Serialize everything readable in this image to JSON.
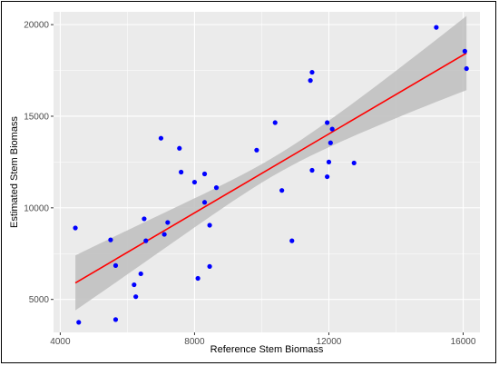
{
  "chart_data": {
    "type": "scatter",
    "xlabel": "Reference Stem Biomass",
    "ylabel": "Estimated Stem Biomass",
    "xlim": [
      3800,
      16500
    ],
    "ylim": [
      3200,
      20700
    ],
    "x_ticks": [
      4000,
      8000,
      12000,
      16000
    ],
    "y_ticks": [
      5000,
      10000,
      15000,
      20000
    ],
    "grid": true,
    "legend": "none",
    "points": [
      {
        "x": 4450,
        "y": 8900
      },
      {
        "x": 4550,
        "y": 3750
      },
      {
        "x": 5500,
        "y": 8250
      },
      {
        "x": 5650,
        "y": 6850
      },
      {
        "x": 5650,
        "y": 3900
      },
      {
        "x": 6200,
        "y": 5800
      },
      {
        "x": 6250,
        "y": 5150
      },
      {
        "x": 6400,
        "y": 6400
      },
      {
        "x": 6500,
        "y": 9400
      },
      {
        "x": 6550,
        "y": 8200
      },
      {
        "x": 7000,
        "y": 13800
      },
      {
        "x": 7100,
        "y": 8550
      },
      {
        "x": 7200,
        "y": 9200
      },
      {
        "x": 7550,
        "y": 13250
      },
      {
        "x": 7600,
        "y": 11950
      },
      {
        "x": 8000,
        "y": 11400
      },
      {
        "x": 8100,
        "y": 6150
      },
      {
        "x": 8300,
        "y": 11850
      },
      {
        "x": 8300,
        "y": 10300
      },
      {
        "x": 8450,
        "y": 6800
      },
      {
        "x": 8450,
        "y": 9050
      },
      {
        "x": 8650,
        "y": 11100
      },
      {
        "x": 9850,
        "y": 13150
      },
      {
        "x": 10400,
        "y": 14650
      },
      {
        "x": 10600,
        "y": 10950
      },
      {
        "x": 10900,
        "y": 8200
      },
      {
        "x": 11450,
        "y": 16950
      },
      {
        "x": 11500,
        "y": 17400
      },
      {
        "x": 11500,
        "y": 12050
      },
      {
        "x": 11950,
        "y": 14650
      },
      {
        "x": 11950,
        "y": 11700
      },
      {
        "x": 12000,
        "y": 12500
      },
      {
        "x": 12050,
        "y": 13550
      },
      {
        "x": 12100,
        "y": 14300
      },
      {
        "x": 12750,
        "y": 12450
      },
      {
        "x": 15200,
        "y": 19850
      },
      {
        "x": 16050,
        "y": 18550
      },
      {
        "x": 16100,
        "y": 17600
      }
    ],
    "fit": {
      "x": [
        4450,
        16100
      ],
      "y": [
        5900,
        18450
      ],
      "band_lower": [
        4450,
        16400
      ],
      "band_upper": [
        7450,
        20450
      ]
    },
    "colors": {
      "point": "#0000ff",
      "fit_line": "#ff0000",
      "band": "#bebebe",
      "panel": "#ebebeb",
      "grid": "#ffffff"
    }
  }
}
